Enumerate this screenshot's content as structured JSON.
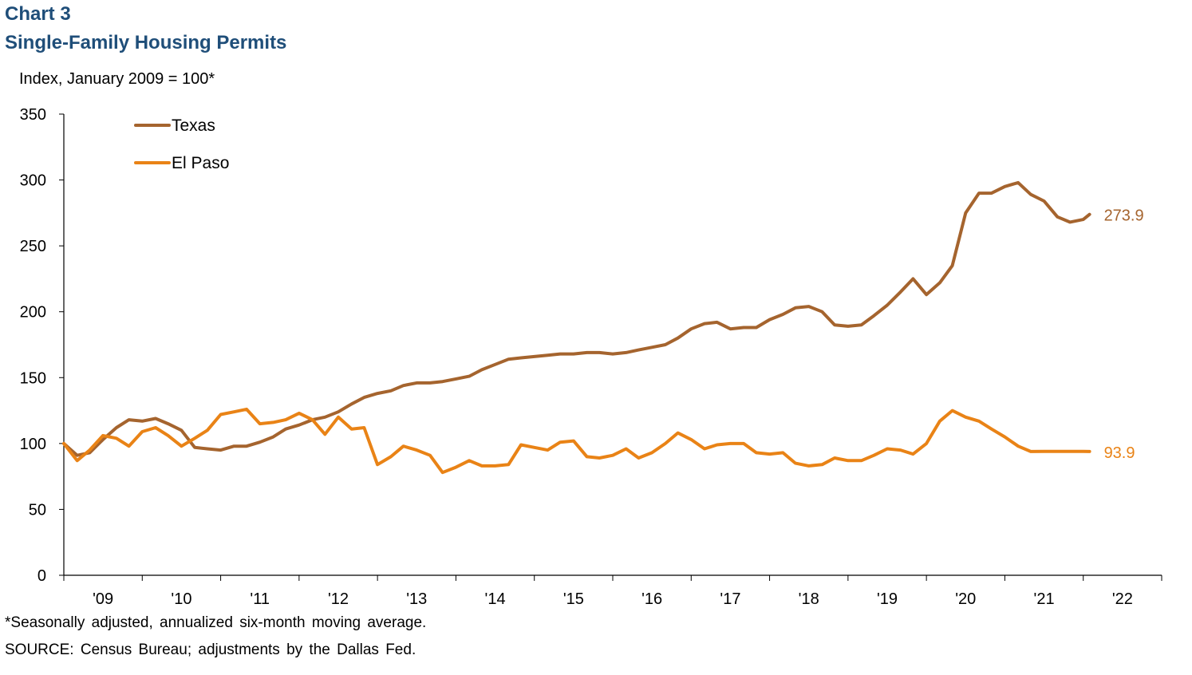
{
  "header": {
    "chart_number": "Chart 3",
    "title": "Single-Family Housing Permits",
    "unit_label": "Index, January 2009 = 100*"
  },
  "footer": {
    "note": "*Seasonally adjusted, annualized six-month moving average.",
    "source": "SOURCE: Census Bureau; adjustments by the Dallas Fed."
  },
  "colors": {
    "Texas": "#a5642e",
    "El Paso": "#e98316",
    "axis": "#000000"
  },
  "chart_data": {
    "type": "line",
    "title": "Single-Family Housing Permits",
    "ylabel": "Index, January 2009 = 100*",
    "xlabel": "",
    "ylim": [
      0,
      350
    ],
    "yticks": [
      0,
      50,
      100,
      150,
      200,
      250,
      300,
      350
    ],
    "xlim": [
      2009.0,
      2023.0
    ],
    "xtick_labels": [
      "'09",
      "'10",
      "'11",
      "'12",
      "'13",
      "'14",
      "'15",
      "'16",
      "'17",
      "'18",
      "'19",
      "'20",
      "'21",
      "'22"
    ],
    "grid": false,
    "legend": "top-left",
    "series": [
      {
        "name": "Texas",
        "end_label": "273.9",
        "x": [
          2009.0,
          2009.17,
          2009.33,
          2009.5,
          2009.67,
          2009.83,
          2010.0,
          2010.17,
          2010.33,
          2010.5,
          2010.67,
          2010.83,
          2011.0,
          2011.17,
          2011.33,
          2011.5,
          2011.67,
          2011.83,
          2012.0,
          2012.17,
          2012.33,
          2012.5,
          2012.67,
          2012.83,
          2013.0,
          2013.17,
          2013.33,
          2013.5,
          2013.67,
          2013.83,
          2014.0,
          2014.17,
          2014.33,
          2014.5,
          2014.67,
          2014.83,
          2015.0,
          2015.17,
          2015.33,
          2015.5,
          2015.67,
          2015.83,
          2016.0,
          2016.17,
          2016.33,
          2016.5,
          2016.67,
          2016.83,
          2017.0,
          2017.17,
          2017.33,
          2017.5,
          2017.67,
          2017.83,
          2018.0,
          2018.17,
          2018.33,
          2018.5,
          2018.67,
          2018.83,
          2019.0,
          2019.17,
          2019.33,
          2019.5,
          2019.67,
          2019.83,
          2020.0,
          2020.17,
          2020.33,
          2020.5,
          2020.67,
          2020.83,
          2021.0,
          2021.17,
          2021.33,
          2021.5,
          2021.67,
          2021.83,
          2022.0,
          2022.08
        ],
        "values": [
          100,
          91,
          93,
          103,
          112,
          118,
          117,
          119,
          115,
          110,
          97,
          96,
          95,
          98,
          98,
          101,
          105,
          111,
          114,
          118,
          120,
          124,
          130,
          135,
          138,
          140,
          144,
          146,
          146,
          147,
          149,
          151,
          156,
          160,
          164,
          165,
          166,
          167,
          168,
          168,
          169,
          169,
          168,
          169,
          171,
          173,
          175,
          180,
          187,
          191,
          192,
          187,
          188,
          188,
          194,
          198,
          203,
          204,
          200,
          190,
          189,
          190,
          197,
          205,
          215,
          225,
          213,
          222,
          235,
          275,
          290,
          290,
          295,
          298,
          289,
          284,
          272,
          268,
          270,
          273.9
        ],
        "color": "#a5642e"
      },
      {
        "name": "El Paso",
        "end_label": "93.9",
        "x": [
          2009.0,
          2009.17,
          2009.33,
          2009.5,
          2009.67,
          2009.83,
          2010.0,
          2010.17,
          2010.33,
          2010.5,
          2010.67,
          2010.83,
          2011.0,
          2011.17,
          2011.33,
          2011.5,
          2011.67,
          2011.83,
          2012.0,
          2012.17,
          2012.33,
          2012.5,
          2012.67,
          2012.83,
          2013.0,
          2013.17,
          2013.33,
          2013.5,
          2013.67,
          2013.83,
          2014.0,
          2014.17,
          2014.33,
          2014.5,
          2014.67,
          2014.83,
          2015.0,
          2015.17,
          2015.33,
          2015.5,
          2015.67,
          2015.83,
          2016.0,
          2016.17,
          2016.33,
          2016.5,
          2016.67,
          2016.83,
          2017.0,
          2017.17,
          2017.33,
          2017.5,
          2017.67,
          2017.83,
          2018.0,
          2018.17,
          2018.33,
          2018.5,
          2018.67,
          2018.83,
          2019.0,
          2019.17,
          2019.33,
          2019.5,
          2019.67,
          2019.83,
          2020.0,
          2020.17,
          2020.33,
          2020.5,
          2020.67,
          2020.83,
          2021.0,
          2021.17,
          2021.33,
          2021.5,
          2021.67,
          2021.83,
          2022.0,
          2022.08
        ],
        "values": [
          100,
          87,
          95,
          106,
          104,
          98,
          109,
          112,
          106,
          98,
          104,
          110,
          122,
          124,
          126,
          115,
          116,
          118,
          123,
          118,
          107,
          120,
          111,
          112,
          84,
          90,
          98,
          95,
          91,
          78,
          82,
          87,
          83,
          83,
          84,
          99,
          97,
          95,
          101,
          102,
          90,
          89,
          91,
          96,
          89,
          93,
          100,
          108,
          103,
          96,
          99,
          100,
          100,
          93,
          92,
          93,
          85,
          83,
          84,
          89,
          87,
          87,
          91,
          96,
          95,
          92,
          100,
          117,
          125,
          120,
          117,
          111,
          105,
          98,
          93.9,
          94,
          94,
          94,
          94,
          93.9
        ],
        "color": "#e98316"
      }
    ]
  }
}
